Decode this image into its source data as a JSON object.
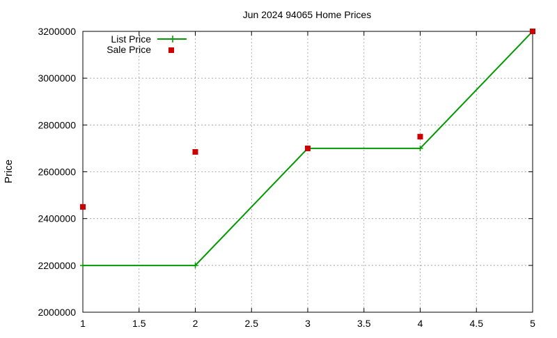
{
  "chart_data": {
    "type": "line",
    "title": "Jun 2024 94065 Home Prices",
    "xlabel": "",
    "ylabel": "Price",
    "xlim": [
      1,
      5
    ],
    "ylim": [
      2000000,
      3200000
    ],
    "x_ticks": [
      1,
      1.5,
      2,
      2.5,
      3,
      3.5,
      4,
      4.5,
      5
    ],
    "x_tick_labels": [
      "1",
      "1.5",
      "2",
      "2.5",
      "3",
      "3.5",
      "4",
      "4.5",
      "5"
    ],
    "y_ticks": [
      2000000,
      2200000,
      2400000,
      2600000,
      2800000,
      3000000,
      3200000
    ],
    "y_tick_labels": [
      "2000000",
      "2200000",
      "2400000",
      "2600000",
      "2800000",
      "3000000",
      "3200000"
    ],
    "grid": true,
    "legend_position": "top-left",
    "series": [
      {
        "name": "List Price",
        "style": "line-points",
        "marker": "plus",
        "color": "#009900",
        "x": [
          1,
          2,
          3,
          4,
          5
        ],
        "values": [
          2200000,
          2200000,
          2700000,
          2700000,
          3200000
        ]
      },
      {
        "name": "Sale Price",
        "style": "points",
        "marker": "square",
        "color": "#cc0000",
        "x": [
          1,
          2,
          3,
          4,
          5
        ],
        "values": [
          2450000,
          2685000,
          2700000,
          2750000,
          3200000
        ]
      }
    ]
  }
}
